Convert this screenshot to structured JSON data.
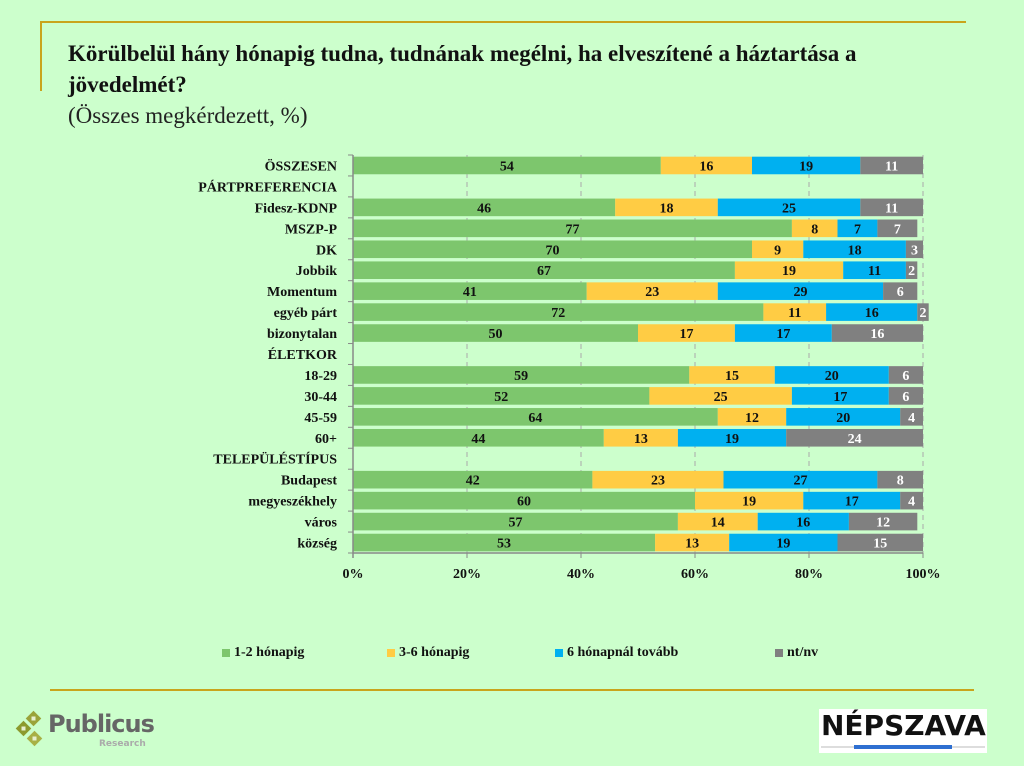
{
  "header": {
    "title": "Körülbelül hány hónapig tudna, tudnának megélni, ha elveszítené a háztartása a jövedelmét?",
    "subtitle": "(Összes megkérdezett, %)"
  },
  "logos": {
    "left": {
      "name": "Publicus",
      "sub": "Research"
    },
    "right": {
      "name": "NÉPSZAVA"
    }
  },
  "chart_data": {
    "type": "bar",
    "orientation": "horizontal",
    "stacked": true,
    "percent_stacked": true,
    "title": "Körülbelül hány hónapig tudna, tudnának megélni, ha elveszítené a háztartása a jövedelmét?",
    "subtitle": "(Összes megkérdezett, %)",
    "xlabel": "",
    "ylabel": "",
    "xlim": [
      0,
      100
    ],
    "x_ticks": [
      "0%",
      "20%",
      "40%",
      "60%",
      "80%",
      "100%"
    ],
    "grid": "vertical dashed",
    "legend_position": "bottom",
    "categories": [
      {
        "label": "ÖSSZESEN",
        "header": true,
        "values": [
          54,
          16,
          19,
          11
        ]
      },
      {
        "label": "PÁRTPREFERENCIA",
        "header": true,
        "values": null
      },
      {
        "label": "Fidesz-KDNP",
        "header": false,
        "values": [
          46,
          18,
          25,
          11
        ]
      },
      {
        "label": "MSZP-P",
        "header": false,
        "values": [
          77,
          8,
          7,
          7
        ]
      },
      {
        "label": "DK",
        "header": false,
        "values": [
          70,
          9,
          18,
          3
        ]
      },
      {
        "label": "Jobbik",
        "header": false,
        "values": [
          67,
          19,
          11,
          2
        ]
      },
      {
        "label": "Momentum",
        "header": false,
        "values": [
          41,
          23,
          29,
          6
        ]
      },
      {
        "label": "egyéb párt",
        "header": false,
        "values": [
          72,
          11,
          16,
          2
        ]
      },
      {
        "label": "bizonytalan",
        "header": false,
        "values": [
          50,
          17,
          17,
          16
        ]
      },
      {
        "label": "ÉLETKOR",
        "header": true,
        "values": null
      },
      {
        "label": "18-29",
        "header": false,
        "values": [
          59,
          15,
          20,
          6
        ]
      },
      {
        "label": "30-44",
        "header": false,
        "values": [
          52,
          25,
          17,
          6
        ]
      },
      {
        "label": "45-59",
        "header": false,
        "values": [
          64,
          12,
          20,
          4
        ]
      },
      {
        "label": "60+",
        "header": false,
        "values": [
          44,
          13,
          19,
          24
        ]
      },
      {
        "label": "TELEPÜLÉSTÍPUS",
        "header": true,
        "values": null
      },
      {
        "label": "Budapest",
        "header": false,
        "values": [
          42,
          23,
          27,
          8
        ]
      },
      {
        "label": "megyeszékhely",
        "header": false,
        "values": [
          60,
          19,
          17,
          4
        ]
      },
      {
        "label": "város",
        "header": false,
        "values": [
          57,
          14,
          16,
          12
        ]
      },
      {
        "label": "község",
        "header": false,
        "values": [
          53,
          13,
          19,
          15
        ]
      }
    ],
    "series": [
      {
        "name": "1-2 hónapig",
        "color": "#7dc66d",
        "label_color": "#111111"
      },
      {
        "name": "3-6 hónapig",
        "color": "#ffcc44",
        "label_color": "#111111"
      },
      {
        "name": "6 hónapnál tovább",
        "color": "#00b0f0",
        "label_color": "#111111"
      },
      {
        "name": "nt/nv",
        "color": "#808080",
        "label_color": "#ffffff"
      }
    ]
  }
}
